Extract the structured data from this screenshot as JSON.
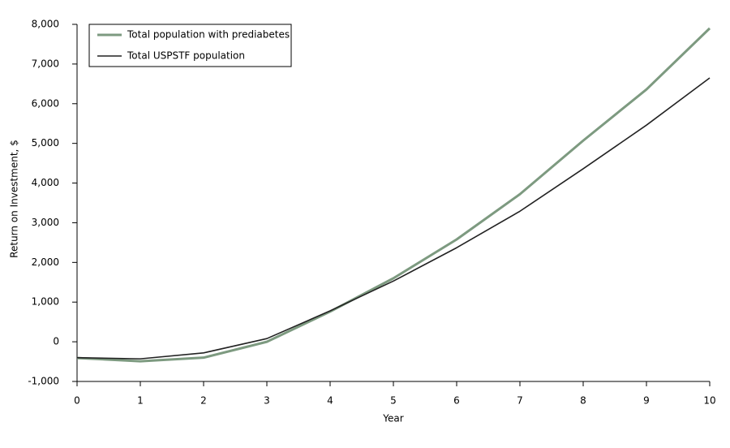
{
  "chart_data": {
    "type": "line",
    "x_label": "Year",
    "y_label": "Return on Investment, $",
    "x": [
      0,
      1,
      2,
      3,
      4,
      5,
      6,
      7,
      8,
      9,
      10
    ],
    "series": [
      {
        "name": "Total population with prediabetes",
        "color": "#7d9a80",
        "values": [
          -410,
          -490,
          -400,
          0,
          760,
          1600,
          2580,
          3720,
          5070,
          6360,
          7900
        ]
      },
      {
        "name": "Total USPSTF population",
        "color": "#222222",
        "values": [
          -400,
          -430,
          -280,
          80,
          780,
          1530,
          2370,
          3290,
          4360,
          5460,
          6650
        ]
      }
    ],
    "xlim": [
      0,
      10
    ],
    "xticks": [
      0,
      1,
      2,
      3,
      4,
      5,
      6,
      7,
      8,
      9,
      10
    ],
    "ylim": [
      -1000,
      8000
    ],
    "yticks": [
      {
        "value": -1000,
        "label": "-1,000"
      },
      0,
      {
        "value": 1000,
        "label": "1,000"
      },
      {
        "value": 2000,
        "label": "2,000"
      },
      {
        "value": 3000,
        "label": "3,000"
      },
      {
        "value": 4000,
        "label": "4,000"
      },
      {
        "value": 5000,
        "label": "5,000"
      },
      {
        "value": 6000,
        "label": "6,000"
      },
      {
        "value": 7000,
        "label": "7,000"
      },
      {
        "value": 8000,
        "label": "8,000"
      }
    ],
    "grid": false,
    "legend": "top-left"
  }
}
